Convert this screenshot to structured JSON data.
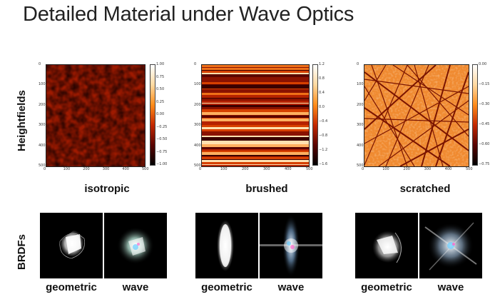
{
  "title": "Detailed Material under Wave Optics",
  "row_labels": {
    "heightfields": "Heightfields",
    "brdfs": "BRDFs"
  },
  "plots": [
    {
      "caption": "isotropic",
      "x_ticks": [
        "0",
        "100",
        "200",
        "300",
        "400",
        "500"
      ],
      "y_ticks": [
        "0",
        "100",
        "200",
        "300",
        "400",
        "500"
      ],
      "colorbar_ticks": [
        "1.00",
        "0.75",
        "0.50",
        "0.25",
        "0.00",
        "−0.25",
        "−0.50",
        "−0.75",
        "−1.00"
      ]
    },
    {
      "caption": "brushed",
      "x_ticks": [
        "0",
        "100",
        "200",
        "300",
        "400",
        "500"
      ],
      "y_ticks": [
        "0",
        "100",
        "200",
        "300",
        "400",
        "500"
      ],
      "colorbar_ticks": [
        "1.2",
        "0.8",
        "0.4",
        "0.0",
        "−0.4",
        "−0.8",
        "−1.2",
        "−1.6"
      ]
    },
    {
      "caption": "scratched",
      "x_ticks": [
        "0",
        "100",
        "200",
        "300",
        "400",
        "500"
      ],
      "y_ticks": [
        "0",
        "100",
        "200",
        "300",
        "400",
        "500"
      ],
      "colorbar_ticks": [
        "0.00",
        "−0.15",
        "−0.30",
        "−0.45",
        "−0.60",
        "−0.75"
      ]
    }
  ],
  "brdf_captions": [
    {
      "geometric": "geometric",
      "wave": "wave"
    },
    {
      "geometric": "geometric",
      "wave": "wave"
    },
    {
      "geometric": "geometric",
      "wave": "wave"
    }
  ],
  "colors": {
    "hot_dark": "#3a0000",
    "hot_mid": "#d64000",
    "hot_light": "#ffd9a0"
  }
}
